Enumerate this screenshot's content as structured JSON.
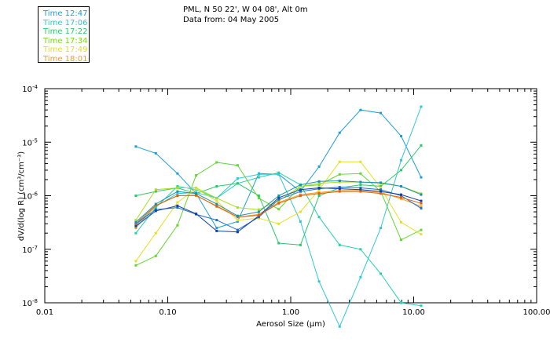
{
  "header": {
    "line1": "PML, N 50 22', W 04 08', Alt 0m",
    "line2": "Data from: 04 May 2005"
  },
  "legend": [
    {
      "label": "Time 12:47",
      "color": "#1a9fd6"
    },
    {
      "label": "Time 17:06",
      "color": "#22d0c0"
    },
    {
      "label": "Time 17:22",
      "color": "#2ec86a"
    },
    {
      "label": "Time 17:34",
      "color": "#7ad81e"
    },
    {
      "label": "Time 17:49",
      "color": "#e0e020"
    },
    {
      "label": "Time 18:01",
      "color": "#f0a020"
    }
  ],
  "chart_data": {
    "type": "line",
    "xscale": "log",
    "yscale": "log",
    "xlim": [
      0.01,
      100
    ],
    "ylim": [
      1e-08,
      0.0001
    ],
    "xlabel": "Aerosol Size (μm)",
    "ylabel": "dV/d(log R) (cm³/cm⁻³)",
    "xticks": [
      {
        "value": 0.01,
        "label": "0.01"
      },
      {
        "value": 0.1,
        "label": "0.10"
      },
      {
        "value": 1,
        "label": "1.00"
      },
      {
        "value": 10,
        "label": "10.00"
      },
      {
        "value": 100,
        "label": "100.00"
      }
    ],
    "yticks": [
      {
        "value": 0.0001,
        "base": "10",
        "exp": "-4"
      },
      {
        "value": 1e-05,
        "base": "10",
        "exp": "-5"
      },
      {
        "value": 1e-06,
        "base": "10",
        "exp": "-6"
      },
      {
        "value": 1e-07,
        "base": "10",
        "exp": "-7"
      },
      {
        "value": 1e-08,
        "base": "10",
        "exp": "-8"
      }
    ],
    "x": [
      0.055,
      0.08,
      0.12,
      0.17,
      0.25,
      0.37,
      0.55,
      0.8,
      1.2,
      1.7,
      2.5,
      3.7,
      5.4,
      7.9,
      11.5
    ],
    "series": [
      {
        "color": "#1a9fd6",
        "values": [
          8.3e-06,
          6.2e-06,
          2.6e-06,
          1.1e-06,
          2.5e-07,
          3.3e-07,
          2.6e-06,
          2.5e-06,
          1.2e-06,
          3.5e-06,
          1.5e-05,
          4e-05,
          3.5e-05,
          1.3e-05,
          2.2e-06
        ]
      },
      {
        "color": "#30c8d8",
        "values": [
          2.8e-07,
          6.3e-07,
          1.1e-06,
          1.15e-06,
          9e-07,
          2.1e-06,
          2.5e-06,
          2.5e-06,
          3.3e-07,
          2.5e-08,
          3.6e-09,
          3e-08,
          2.5e-07,
          4.6e-06,
          4.6e-05
        ]
      },
      {
        "color": "#22d0b0",
        "values": [
          2e-07,
          6e-07,
          1.5e-06,
          1.3e-06,
          9e-07,
          1.7e-06,
          2.2e-06,
          2.7e-06,
          1.6e-06,
          4e-07,
          1.2e-07,
          1e-07,
          3.5e-08,
          1e-08,
          8.8e-09
        ]
      },
      {
        "color": "#2ec86a",
        "values": [
          1e-06,
          1.2e-06,
          1.4e-06,
          1.1e-06,
          1.5e-06,
          1.7e-06,
          1e-06,
          1.3e-07,
          1.2e-07,
          1e-06,
          1.4e-06,
          1.6e-06,
          1.5e-06,
          3e-06,
          8.7e-06
        ]
      },
      {
        "color": "#60d830",
        "values": [
          5e-08,
          7.5e-08,
          2.8e-07,
          2.4e-06,
          4.2e-06,
          3.7e-06,
          9e-07,
          5.6e-07,
          1.5e-06,
          1.6e-06,
          2.5e-06,
          2.6e-06,
          1.2e-06,
          1.5e-07,
          2.3e-07
        ]
      },
      {
        "color": "#a8e020",
        "values": [
          3.5e-07,
          1.3e-06,
          1.4e-06,
          1.4e-06,
          9e-07,
          6e-07,
          5.5e-07,
          8e-07,
          1.5e-06,
          1.7e-06,
          1.8e-06,
          1.8e-06,
          1.7e-06,
          1.5e-06,
          1.1e-06
        ]
      },
      {
        "color": "#e8e020",
        "values": [
          6e-08,
          2e-07,
          7.5e-07,
          1.35e-06,
          8e-07,
          3.5e-07,
          3.8e-07,
          3e-07,
          5e-07,
          1.3e-06,
          4.3e-06,
          4.3e-06,
          1.4e-06,
          3.2e-07,
          1.9e-07
        ]
      },
      {
        "color": "#f0a020",
        "values": [
          2.5e-07,
          6.5e-07,
          1e-06,
          1e-06,
          6.5e-07,
          4e-07,
          4.5e-07,
          7.5e-07,
          1.05e-06,
          1.15e-06,
          1.25e-06,
          1.25e-06,
          1.15e-06,
          8.8e-07,
          6.3e-07
        ]
      },
      {
        "color": "#2070c8",
        "values": [
          3e-07,
          5.5e-07,
          6e-07,
          4.5e-07,
          3.5e-07,
          2.3e-07,
          4e-07,
          8.5e-07,
          1.2e-06,
          1.35e-06,
          1.45e-06,
          1.4e-06,
          1.3e-06,
          1e-06,
          5.8e-07
        ]
      },
      {
        "color": "#1040a8",
        "values": [
          2.7e-07,
          5.2e-07,
          6.5e-07,
          4.6e-07,
          2.2e-07,
          2.1e-07,
          4.2e-07,
          9.2e-07,
          1.3e-06,
          1.4e-06,
          1.35e-06,
          1.3e-06,
          1.2e-06,
          1.05e-06,
          8e-07
        ]
      },
      {
        "color": "#e06010",
        "values": [
          3e-07,
          6.6e-07,
          1e-06,
          1.02e-06,
          6.3e-07,
          4e-07,
          4.3e-07,
          7.2e-07,
          1e-06,
          1.1e-06,
          1.2e-06,
          1.2e-06,
          1.1e-06,
          9.3e-07,
          7.2e-07
        ]
      },
      {
        "color": "#1890b0",
        "values": [
          3.2e-07,
          7e-07,
          1.2e-06,
          1.1e-06,
          7e-07,
          4.2e-07,
          5e-07,
          1e-06,
          1.6e-06,
          1.85e-06,
          1.9e-06,
          1.8e-06,
          1.75e-06,
          1.5e-06,
          1.05e-06
        ]
      }
    ]
  }
}
